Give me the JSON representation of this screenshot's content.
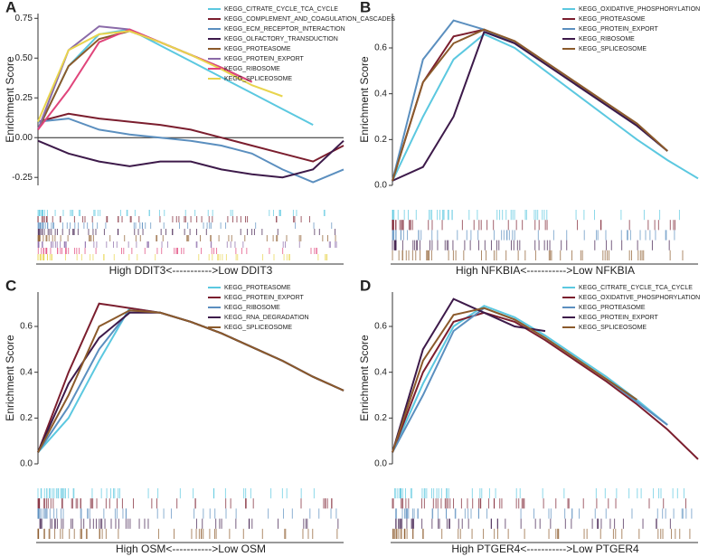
{
  "chart_data": [
    {
      "type": "line",
      "label": "A",
      "ylabel": "Enrichment Score",
      "xlabel": "High DDIT3<----------->Low DDIT3",
      "ylim": [
        -0.3,
        0.78
      ],
      "yticks": [
        {
          "value": -0.25,
          "label": "-0.25"
        },
        {
          "value": 0,
          "label": "0.00"
        },
        0.25,
        {
          "value": 0.5,
          "label": "0.50"
        },
        0.75
      ],
      "legend": "top-right",
      "series": [
        {
          "name": "KEGG_CITRATE_CYCLE_TCA_CYCLE",
          "color": "#5bc8e0",
          "values": [
            0.05,
            0.45,
            0.65,
            0.68,
            0.58,
            0.48,
            0.38,
            0.28,
            0.18,
            0.08,
            null
          ]
        },
        {
          "name": "KEGG_COMPLEMENT_AND_COAGULATION_CASCADES",
          "color": "#7b1e2e",
          "values": [
            0.1,
            0.15,
            0.12,
            0.1,
            0.08,
            0.05,
            0.0,
            -0.05,
            -0.1,
            -0.15,
            -0.05
          ]
        },
        {
          "name": "KEGG_ECM_RECEPTOR_INTERACTION",
          "color": "#5b8fbf",
          "values": [
            0.1,
            0.12,
            0.05,
            0.02,
            0.0,
            -0.02,
            -0.05,
            -0.1,
            -0.2,
            -0.28,
            -0.2
          ]
        },
        {
          "name": "KEGG_OLFACTORY_TRANSDUCTION",
          "color": "#3d1a4a",
          "values": [
            -0.02,
            -0.1,
            -0.15,
            -0.18,
            -0.15,
            -0.15,
            -0.2,
            -0.23,
            -0.25,
            -0.2,
            -0.02
          ]
        },
        {
          "name": "KEGG_PROTEASOME",
          "color": "#8b5a2b",
          "values": [
            0.05,
            0.45,
            0.62,
            0.67,
            0.6,
            0.52,
            0.44,
            0.35,
            null,
            null,
            null
          ]
        },
        {
          "name": "KEGG_PROTEIN_EXPORT",
          "color": "#8a6aa8",
          "values": [
            0.05,
            0.55,
            0.7,
            0.68,
            0.6,
            0.52,
            0.44,
            0.35,
            null,
            null,
            null
          ]
        },
        {
          "name": "KEGG_RIBOSOME",
          "color": "#e0457b",
          "values": [
            0.05,
            0.3,
            0.6,
            0.68,
            0.6,
            0.52,
            0.44,
            0.35,
            null,
            null,
            null
          ]
        },
        {
          "name": "KEGG_SPLICEOSOME",
          "color": "#e8d44d",
          "values": [
            0.1,
            0.55,
            0.65,
            0.67,
            0.6,
            0.52,
            0.43,
            0.33,
            0.26,
            null,
            null
          ]
        }
      ]
    },
    {
      "type": "line",
      "label": "B",
      "ylabel": "Enrichment Score",
      "xlabel": "High NFKBIA<----------->Low NFKBIA",
      "ylim": [
        0,
        0.75
      ],
      "yticks": [
        {
          "value": 0,
          "label": "0.0"
        },
        0.2,
        0.4,
        0.6
      ],
      "legend": "top-right",
      "series": [
        {
          "name": "KEGG_OXIDATIVE_PHOSPHORYLATION",
          "color": "#5bc8e0",
          "values": [
            0.02,
            0.3,
            0.55,
            0.66,
            0.6,
            0.5,
            0.4,
            0.3,
            0.2,
            0.11,
            0.03
          ]
        },
        {
          "name": "KEGG_PROTEASOME",
          "color": "#7b1e2e",
          "values": [
            0.02,
            0.45,
            0.65,
            0.68,
            0.62,
            0.53,
            0.44,
            0.35,
            0.26,
            0.15,
            null
          ]
        },
        {
          "name": "KEGG_PROTEIN_EXPORT",
          "color": "#5b8fbf",
          "values": [
            0.02,
            0.55,
            0.72,
            0.68,
            0.62,
            0.53,
            0.44,
            0.35,
            0.26,
            0.15,
            null
          ]
        },
        {
          "name": "KEGG_RIBOSOME",
          "color": "#3d1a4a",
          "values": [
            0.02,
            0.08,
            0.3,
            0.67,
            0.62,
            0.53,
            0.44,
            0.35,
            0.26,
            0.15,
            null
          ]
        },
        {
          "name": "KEGG_SPLICEOSOME",
          "color": "#8b5a2b",
          "values": [
            0.02,
            0.45,
            0.62,
            0.68,
            0.63,
            0.54,
            0.45,
            0.36,
            0.27,
            0.15,
            null
          ]
        }
      ]
    },
    {
      "type": "line",
      "label": "C",
      "ylabel": "Enrichment Score",
      "xlabel": "High OSM<----------->Low OSM",
      "ylim": [
        0,
        0.75
      ],
      "yticks": [
        {
          "value": 0,
          "label": "0.0"
        },
        0.2,
        0.4,
        0.6
      ],
      "legend": "top-right",
      "series": [
        {
          "name": "KEGG_PROTEASOME",
          "color": "#5bc8e0",
          "values": [
            0.05,
            0.2,
            0.45,
            0.68,
            0.66,
            0.62,
            0.57,
            0.51,
            0.45,
            0.38,
            0.32
          ]
        },
        {
          "name": "KEGG_PROTEIN_EXPORT",
          "color": "#7b1e2e",
          "values": [
            0.05,
            0.4,
            0.7,
            0.68,
            0.66,
            0.62,
            0.57,
            0.51,
            0.45,
            0.38,
            0.32
          ]
        },
        {
          "name": "KEGG_RIBOSOME",
          "color": "#5b8fbf",
          "values": [
            0.05,
            0.25,
            0.5,
            0.67,
            0.66,
            0.62,
            0.57,
            0.51,
            0.45,
            0.38,
            0.32
          ]
        },
        {
          "name": "KEGG_RNA_DEGRADATION",
          "color": "#3d1a4a",
          "values": [
            0.05,
            0.35,
            0.55,
            0.66,
            0.66,
            0.62,
            0.57,
            0.51,
            0.45,
            0.38,
            0.32
          ]
        },
        {
          "name": "KEGG_SPLICEOSOME",
          "color": "#8b5a2b",
          "values": [
            0.05,
            0.3,
            0.6,
            0.67,
            0.66,
            0.62,
            0.57,
            0.51,
            0.45,
            0.38,
            0.32
          ]
        }
      ]
    },
    {
      "type": "line",
      "label": "D",
      "ylabel": "Enrichment Score",
      "xlabel": "High PTGER4<----------->Low PTGER4",
      "ylim": [
        0,
        0.75
      ],
      "yticks": [
        {
          "value": 0,
          "label": "0.0"
        },
        0.2,
        0.4,
        0.6
      ],
      "legend": "top-right",
      "series": [
        {
          "name": "KEGG_CITRATE_CYCLE_TCA_CYCLE",
          "color": "#5bc8e0",
          "values": [
            0.05,
            0.35,
            0.6,
            0.69,
            0.64,
            0.56,
            0.47,
            0.38,
            0.28,
            0.17,
            null
          ]
        },
        {
          "name": "KEGG_OXIDATIVE_PHOSPHORYLATION",
          "color": "#7b1e2e",
          "values": [
            0.05,
            0.4,
            0.62,
            0.66,
            0.62,
            0.54,
            0.45,
            0.36,
            0.26,
            0.15,
            0.02
          ]
        },
        {
          "name": "KEGG_PROTEASOME",
          "color": "#5b8fbf",
          "values": [
            0.05,
            0.3,
            0.58,
            0.68,
            0.63,
            0.55,
            0.46,
            0.37,
            0.27,
            0.17,
            null
          ]
        },
        {
          "name": "KEGG_PROTEIN_EXPORT",
          "color": "#3d1a4a",
          "values": [
            0.05,
            0.5,
            0.72,
            0.66,
            0.6,
            0.58,
            null,
            null,
            null,
            null,
            null
          ]
        },
        {
          "name": "KEGG_SPLICEOSOME",
          "color": "#8b5a2b",
          "values": [
            0.05,
            0.45,
            0.65,
            0.68,
            0.63,
            0.55,
            0.46,
            0.37,
            0.28,
            null,
            null
          ]
        }
      ]
    }
  ]
}
